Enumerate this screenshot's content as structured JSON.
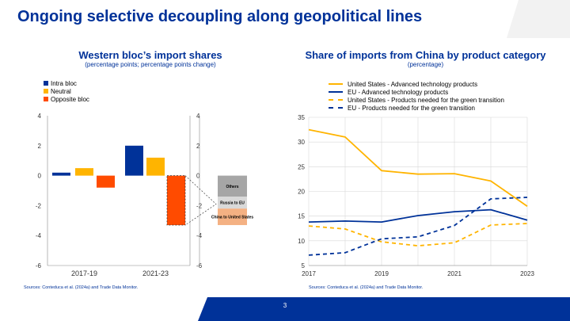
{
  "page": {
    "title": "Ongoing selective decoupling along geopolitical lines",
    "page_number": "3"
  },
  "colors": {
    "ecb_blue": "#003299",
    "yellow": "#FFB400",
    "orange": "#FF4B00",
    "grey": "#A6A6A6",
    "light_grey": "#D9D9D9",
    "salmon": "#F4B183"
  },
  "left_panel": {
    "title": "Western bloc’s import shares",
    "subtitle": "(percentage points; percentage points change)",
    "source": "Sources: Conteduca et al. (2024a) and Trade Data Monitor."
  },
  "right_panel": {
    "title": "Share of imports from China by product category",
    "subtitle": "(percentage)",
    "source": "Sources: Conteduca et al. (2024a) and Trade Data Monitor."
  },
  "chart_data": [
    {
      "type": "bar",
      "title": "Western bloc’s import shares",
      "subtitle": "(percentage points; percentage points change)",
      "categories": [
        "2017-19",
        "2021-23"
      ],
      "series": [
        {
          "name": "Intra bloc",
          "color": "#003299",
          "values": [
            0.2,
            2.0
          ]
        },
        {
          "name": "Neutral",
          "color": "#FFB400",
          "values": [
            0.5,
            1.2
          ]
        },
        {
          "name": "Opposite bloc",
          "color": "#FF4B00",
          "values": [
            -0.8,
            -3.3
          ]
        }
      ],
      "ylim": [
        -6,
        4
      ],
      "yticks": [
        "4",
        "2",
        "0",
        "-2",
        "-4",
        "-6"
      ],
      "grid": false,
      "legend": "top-left"
    },
    {
      "type": "bar",
      "title": "",
      "stacked": true,
      "categories": [
        ""
      ],
      "segments": [
        {
          "label": "Others",
          "value": -1.4,
          "color": "#A6A6A6"
        },
        {
          "label": "Russia to EU",
          "value": -0.8,
          "color": "#D9D9D9"
        },
        {
          "label": "China to United States",
          "value": -1.1,
          "color": "#F4B183"
        }
      ],
      "ylim": [
        -6,
        4
      ],
      "yticks": [
        "4",
        "2",
        "0",
        "-2",
        "-4",
        "-6"
      ],
      "grid": false
    },
    {
      "type": "line",
      "title": "Share of imports from China by product category",
      "subtitle": "(percentage)",
      "x": [
        2017,
        2018,
        2019,
        2020,
        2021,
        2022,
        2023
      ],
      "xticks": [
        "2017",
        "2019",
        "2021",
        "2023"
      ],
      "series": [
        {
          "name": "United States - Advanced technology products",
          "color": "#FFB400",
          "dash": "solid",
          "values": [
            32.5,
            31.0,
            24.2,
            23.5,
            23.6,
            22.1,
            17.0
          ]
        },
        {
          "name": "EU - Advanced technology products",
          "color": "#003299",
          "dash": "solid",
          "values": [
            13.8,
            14.0,
            13.8,
            15.1,
            15.9,
            16.3,
            14.2
          ]
        },
        {
          "name": "United States - Products needed for the green transition",
          "color": "#FFB400",
          "dash": "dashed",
          "values": [
            13.0,
            12.4,
            9.8,
            9.0,
            9.6,
            13.2,
            13.5
          ]
        },
        {
          "name": "EU - Products needed for the green transition",
          "color": "#003299",
          "dash": "dashed",
          "values": [
            7.1,
            7.6,
            10.4,
            10.8,
            13.1,
            18.5,
            18.8
          ]
        }
      ],
      "ylim": [
        5,
        35
      ],
      "yticks": [
        "35",
        "30",
        "25",
        "20",
        "15",
        "10",
        "5"
      ],
      "grid": true,
      "legend": "top"
    }
  ]
}
